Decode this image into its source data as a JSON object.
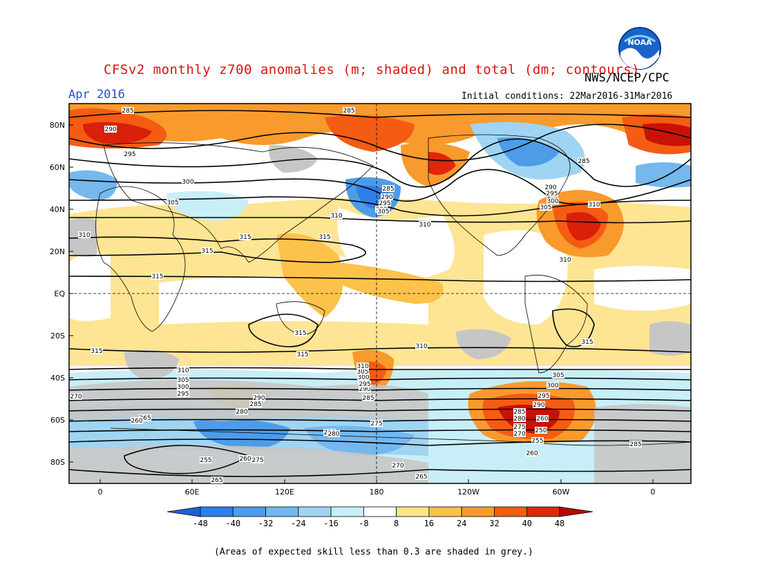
{
  "header": {
    "title": "CFSv2 monthly z700 anomalies (m; shaded) and total (dm; contours)",
    "org": "NWS/NCEP/CPC",
    "month": "Apr 2016",
    "initial_conditions": "Initial conditions: 22Mar2016-31Mar2016",
    "logo_text": "NOAA"
  },
  "map": {
    "lat_labels": [
      "80N",
      "60N",
      "40N",
      "20N",
      "EQ",
      "20S",
      "40S",
      "60S",
      "80S"
    ],
    "lon_labels": [
      "0",
      "60E",
      "120E",
      "180",
      "120W",
      "60W",
      "0"
    ],
    "contour_labels": [
      "285",
      "285",
      "290",
      "295",
      "300",
      "305",
      "310",
      "315",
      "315",
      "315",
      "315",
      "310",
      "315",
      "285",
      "290",
      "295",
      "300",
      "305",
      "310",
      "310",
      "285",
      "290",
      "295",
      "300",
      "305",
      "310",
      "315",
      "315",
      "315",
      "310",
      "305",
      "300",
      "295",
      "290",
      "285",
      "280",
      "275",
      "270",
      "265",
      "260",
      "255",
      "310",
      "305",
      "300",
      "295",
      "290",
      "285",
      "280",
      "275",
      "270",
      "265",
      "260",
      "255",
      "250",
      "255",
      "260",
      "265",
      "270",
      "275",
      "280",
      "285",
      "290",
      "295",
      "300",
      "305",
      "310",
      "285",
      "260"
    ]
  },
  "colorbar": {
    "ticks": [
      "-48",
      "-40",
      "-32",
      "-24",
      "-16",
      "-8",
      "8",
      "16",
      "24",
      "32",
      "40",
      "48"
    ],
    "colors": [
      "#1f5fd6",
      "#2f7fe8",
      "#4e9ce8",
      "#75b8ee",
      "#9fd4f3",
      "#c8eef7",
      "#ffffff",
      "#fee48d",
      "#fdc24a",
      "#f99a2c",
      "#f45c14",
      "#e0260c",
      "#b60808"
    ]
  },
  "footnote": "(Areas of expected skill less than 0.3 are shaded in grey.)"
}
